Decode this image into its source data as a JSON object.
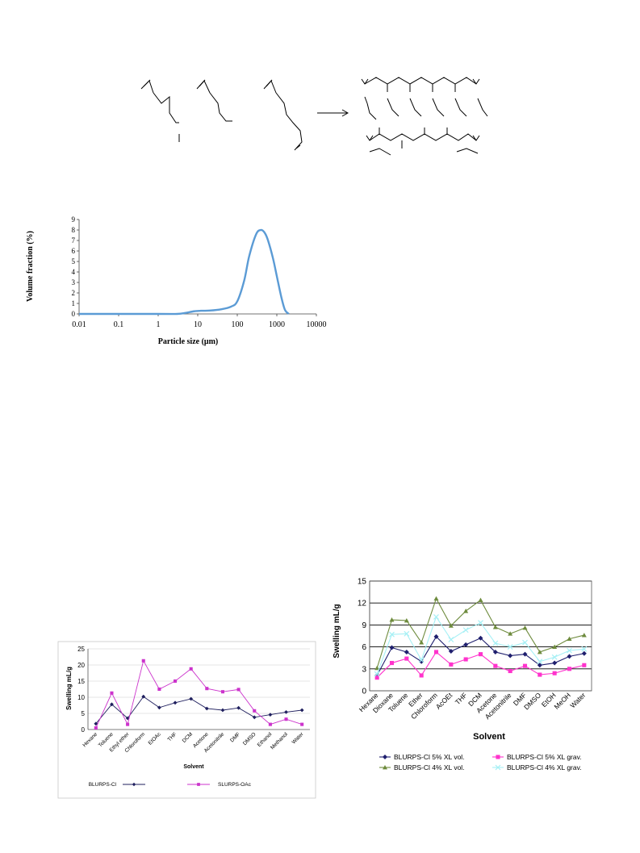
{
  "chart_data": [
    {
      "type": "line",
      "xlabel": "Particle size (μm)",
      "ylabel": "Volume fraction (%)",
      "xscale": "log",
      "xlim": [
        0.01,
        10000
      ],
      "ylim": [
        0,
        9
      ],
      "x_ticks": [
        "0.01",
        "0.1",
        "1",
        "10",
        "100",
        "1000",
        "10000"
      ],
      "y_ticks": [
        "0",
        "1",
        "2",
        "3",
        "4",
        "5",
        "6",
        "7",
        "8",
        "9"
      ],
      "color": "#5b9bd5",
      "grid": false,
      "x": [
        0.01,
        1,
        3,
        5,
        8,
        12,
        20,
        40,
        70,
        100,
        150,
        200,
        300,
        400,
        500,
        600,
        800,
        1000,
        1300,
        1600,
        2000
      ],
      "y": [
        0,
        0,
        0,
        0.1,
        0.25,
        0.3,
        0.32,
        0.45,
        0.7,
        1.2,
        3.2,
        5.5,
        7.6,
        8.0,
        7.7,
        7.0,
        5.3,
        3.6,
        1.6,
        0.4,
        0
      ]
    },
    {
      "type": "line",
      "xlabel": "Solvent",
      "ylabel": "Swelling mL/g",
      "ylim": [
        0,
        25
      ],
      "y_ticks": [
        "0",
        "5",
        "10",
        "15",
        "20",
        "25"
      ],
      "grid": true,
      "legend": "bottom",
      "categories": [
        "Hexane",
        "Toluene",
        "Ethyl ether",
        "Chloroform",
        "EtOAc",
        "THF",
        "DCM",
        "Acetone",
        "Acetonitrile",
        "DMF",
        "DMSO",
        "Ethanol",
        "Methanol",
        "Water"
      ],
      "series": [
        {
          "name": "BLURPS-Cl",
          "color": "#1f1f5e",
          "marker": "diamond",
          "values": [
            1.8,
            7.8,
            3.5,
            10.2,
            6.8,
            8.3,
            9.5,
            6.5,
            6.0,
            6.7,
            3.8,
            4.6,
            5.4,
            6.0
          ]
        },
        {
          "name": "SLURPS-OAc",
          "color": "#cc33cc",
          "marker": "square",
          "values": [
            0.5,
            11.3,
            1.6,
            21.3,
            12.5,
            15.0,
            18.8,
            12.7,
            11.7,
            12.4,
            5.8,
            1.6,
            3.2,
            1.6
          ]
        }
      ]
    },
    {
      "type": "line",
      "xlabel": "Solvent",
      "ylabel": "Swelling mL/g",
      "ylim": [
        0,
        15
      ],
      "y_ticks": [
        "0",
        "3",
        "6",
        "9",
        "12",
        "15"
      ],
      "grid": true,
      "legend": "bottom",
      "categories": [
        "Hexane",
        "Dioxane",
        "Toluene",
        "Ether",
        "Chloroform",
        "AcOEt",
        "THF",
        "DCM",
        "Acetone",
        "Acetonitrile",
        "DMF",
        "DMSO",
        "EtOH",
        "MeOH",
        "Water"
      ],
      "series": [
        {
          "name": "BLURPS-Cl  5% XL vol.",
          "color": "#1f1f6e",
          "marker": "diamond",
          "values": [
            2.1,
            5.9,
            5.3,
            4.0,
            7.4,
            5.4,
            6.3,
            7.2,
            5.3,
            4.8,
            5.0,
            3.5,
            3.8,
            4.7,
            5.1
          ]
        },
        {
          "name": "BLURPS-Cl  5% XL grav.",
          "color": "#ff33cc",
          "marker": "square",
          "values": [
            1.8,
            3.8,
            4.4,
            2.1,
            5.3,
            3.6,
            4.3,
            5.0,
            3.4,
            2.7,
            3.4,
            2.2,
            2.4,
            3.0,
            3.5
          ]
        },
        {
          "name": "BLURPS-Cl  4% XL vol.",
          "color": "#6e8b3d",
          "marker": "triangle",
          "values": [
            3.1,
            9.7,
            9.6,
            6.6,
            12.6,
            8.9,
            10.9,
            12.4,
            8.7,
            7.8,
            8.6,
            5.3,
            6.0,
            7.1,
            7.6
          ]
        },
        {
          "name": "BLURPS-Cl  4% XL grav.",
          "color": "#a6f0f5",
          "marker": "x",
          "values": [
            2.3,
            7.7,
            7.8,
            4.2,
            10.1,
            7.0,
            8.3,
            9.3,
            6.5,
            6.0,
            6.6,
            4.0,
            4.6,
            5.5,
            5.7
          ]
        }
      ]
    }
  ]
}
